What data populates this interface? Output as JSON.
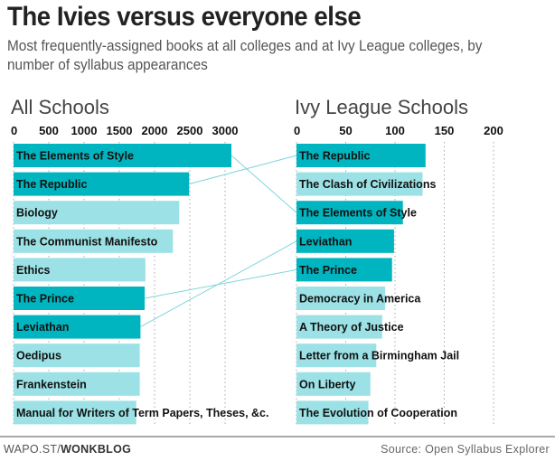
{
  "header": {
    "title": "The Ivies versus everyone else",
    "subtitle": "Most frequently-assigned books at all colleges and at Ivy League colleges, by number of syllabus appearances"
  },
  "footer": {
    "credit_prefix": "WAPO.ST/",
    "credit_bold": "WONKBLOG",
    "source": "Source: Open Syllabus Explorer"
  },
  "colors": {
    "highlight_bar": "#00b5bf",
    "normal_bar": "#9be1e5",
    "connector": "#7fd6dc"
  },
  "chart_data": [
    {
      "type": "bar",
      "orientation": "horizontal",
      "title": "All Schools",
      "xlim": [
        0,
        3000
      ],
      "ticks": [
        0,
        500,
        1000,
        1500,
        2000,
        2500,
        3000
      ],
      "tick_labels": [
        "0",
        "500",
        "1000",
        "1500",
        "2000",
        "2500",
        "3000"
      ],
      "grid": true,
      "categories": [
        "The Elements of Style",
        "The Republic",
        "Biology",
        "The Communist Manifesto",
        "Ethics",
        "The Prince",
        "Leviathan",
        "Oedipus",
        "Frankenstein",
        "Manual for Writers of Term Papers, Theses, &c."
      ],
      "values": [
        3090,
        2490,
        2350,
        2260,
        1870,
        1860,
        1800,
        1790,
        1790,
        1740
      ],
      "highlighted": [
        true,
        true,
        false,
        false,
        false,
        true,
        true,
        false,
        false,
        false
      ]
    },
    {
      "type": "bar",
      "orientation": "horizontal",
      "title": "Ivy League Schools",
      "xlim": [
        0,
        200
      ],
      "ticks": [
        0,
        50,
        100,
        150,
        200
      ],
      "tick_labels": [
        "0",
        "50",
        "100",
        "150",
        "200"
      ],
      "grid": true,
      "categories": [
        "The Republic",
        "The Clash of Civilizations",
        "The Elements of Style",
        "Leviathan",
        "The Prince",
        "Democracy in America",
        "A Theory of Justice",
        "Letter from a Birmingham Jail",
        "On Liberty",
        "The Evolution of Cooperation"
      ],
      "values": [
        131,
        128,
        108,
        99,
        97,
        90,
        87,
        81,
        75,
        73
      ],
      "highlighted": [
        true,
        false,
        true,
        true,
        true,
        false,
        false,
        false,
        false,
        false
      ]
    }
  ],
  "connections": [
    {
      "book": "The Elements of Style",
      "left_rank": 0,
      "right_rank": 2
    },
    {
      "book": "The Republic",
      "left_rank": 1,
      "right_rank": 0
    },
    {
      "book": "The Prince",
      "left_rank": 5,
      "right_rank": 4
    },
    {
      "book": "Leviathan",
      "left_rank": 6,
      "right_rank": 3
    }
  ]
}
